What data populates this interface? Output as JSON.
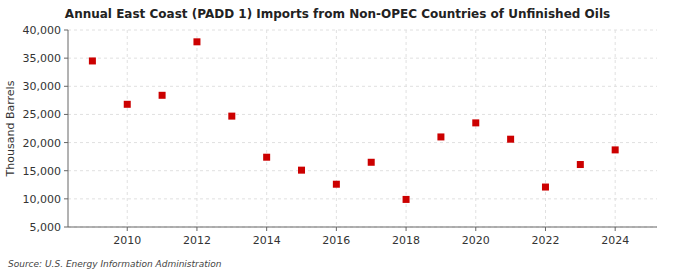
{
  "chart_data": {
    "type": "scatter",
    "title": "Annual East Coast (PADD 1) Imports from Non-OPEC Countries of Unfinished Oils",
    "y_label": "Thousand Barrels",
    "annotations": [
      "Source: U.S. Energy Information Administration"
    ],
    "x": [
      2009,
      2010,
      2011,
      2012,
      2013,
      2014,
      2015,
      2016,
      2017,
      2018,
      2019,
      2020,
      2021,
      2022,
      2023,
      2024
    ],
    "values": [
      34500,
      26800,
      28400,
      37900,
      24700,
      17400,
      15100,
      12600,
      16500,
      9900,
      21000,
      23500,
      20600,
      12100,
      16100,
      18700
    ],
    "color": "#cc0000",
    "marker": "square",
    "xlim": [
      2008.3,
      2025.2
    ],
    "xticks": [
      2010,
      2012,
      2014,
      2016,
      2018,
      2020,
      2022,
      2024
    ],
    "ylim": [
      5000,
      40000
    ],
    "yticks": [
      {
        "value": 5000,
        "label": "5,000"
      },
      {
        "value": 10000,
        "label": "10,000"
      },
      {
        "value": 15000,
        "label": "15,000"
      },
      {
        "value": 20000,
        "label": "20,000"
      },
      {
        "value": 25000,
        "label": "25,000"
      },
      {
        "value": 30000,
        "label": "30,000"
      },
      {
        "value": 35000,
        "label": "35,000"
      },
      {
        "value": 40000,
        "label": "40,000"
      }
    ],
    "grid": true
  }
}
